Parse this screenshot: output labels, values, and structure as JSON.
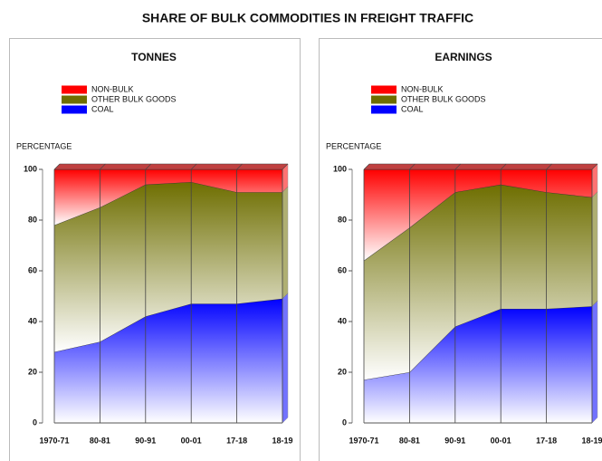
{
  "title": "SHARE OF BULK COMMODITIES IN FREIGHT TRAFFIC",
  "chart_data": [
    {
      "type": "area",
      "stacked": true,
      "title": "TONNES",
      "ylabel": "PERCENTAGE",
      "categories": [
        "1970-71",
        "80-81",
        "90-91",
        "00-01",
        "17-18",
        "18-19"
      ],
      "series": [
        {
          "name": "NON-BULK",
          "color": "#ff0000",
          "values": [
            22,
            15,
            6,
            5,
            9,
            9
          ]
        },
        {
          "name": "OTHER BULK GOODS",
          "color": "#6e6e00",
          "values": [
            50,
            53,
            52,
            48,
            44,
            42
          ]
        },
        {
          "name": "COAL",
          "color": "#0000ff",
          "values": [
            28,
            32,
            42,
            47,
            47,
            49
          ]
        }
      ],
      "ylim": [
        0,
        100
      ],
      "yticks": [
        0,
        20,
        40,
        60,
        80,
        100
      ],
      "legend": "top"
    },
    {
      "type": "area",
      "stacked": true,
      "title": "EARNINGS",
      "ylabel": "PERCENTAGE",
      "categories": [
        "1970-71",
        "80-81",
        "90-91",
        "00-01",
        "17-18",
        "18-19"
      ],
      "series": [
        {
          "name": "NON-BULK",
          "color": "#ff0000",
          "values": [
            36,
            23,
            9,
            6,
            9,
            11
          ]
        },
        {
          "name": "OTHER BULK GOODS",
          "color": "#6e6e00",
          "values": [
            47,
            57,
            53,
            49,
            46,
            43
          ]
        },
        {
          "name": "COAL",
          "color": "#0000ff",
          "values": [
            17,
            20,
            38,
            45,
            45,
            46
          ]
        }
      ],
      "ylim": [
        0,
        100
      ],
      "yticks": [
        0,
        20,
        40,
        60,
        80,
        100
      ],
      "legend": "top"
    }
  ]
}
